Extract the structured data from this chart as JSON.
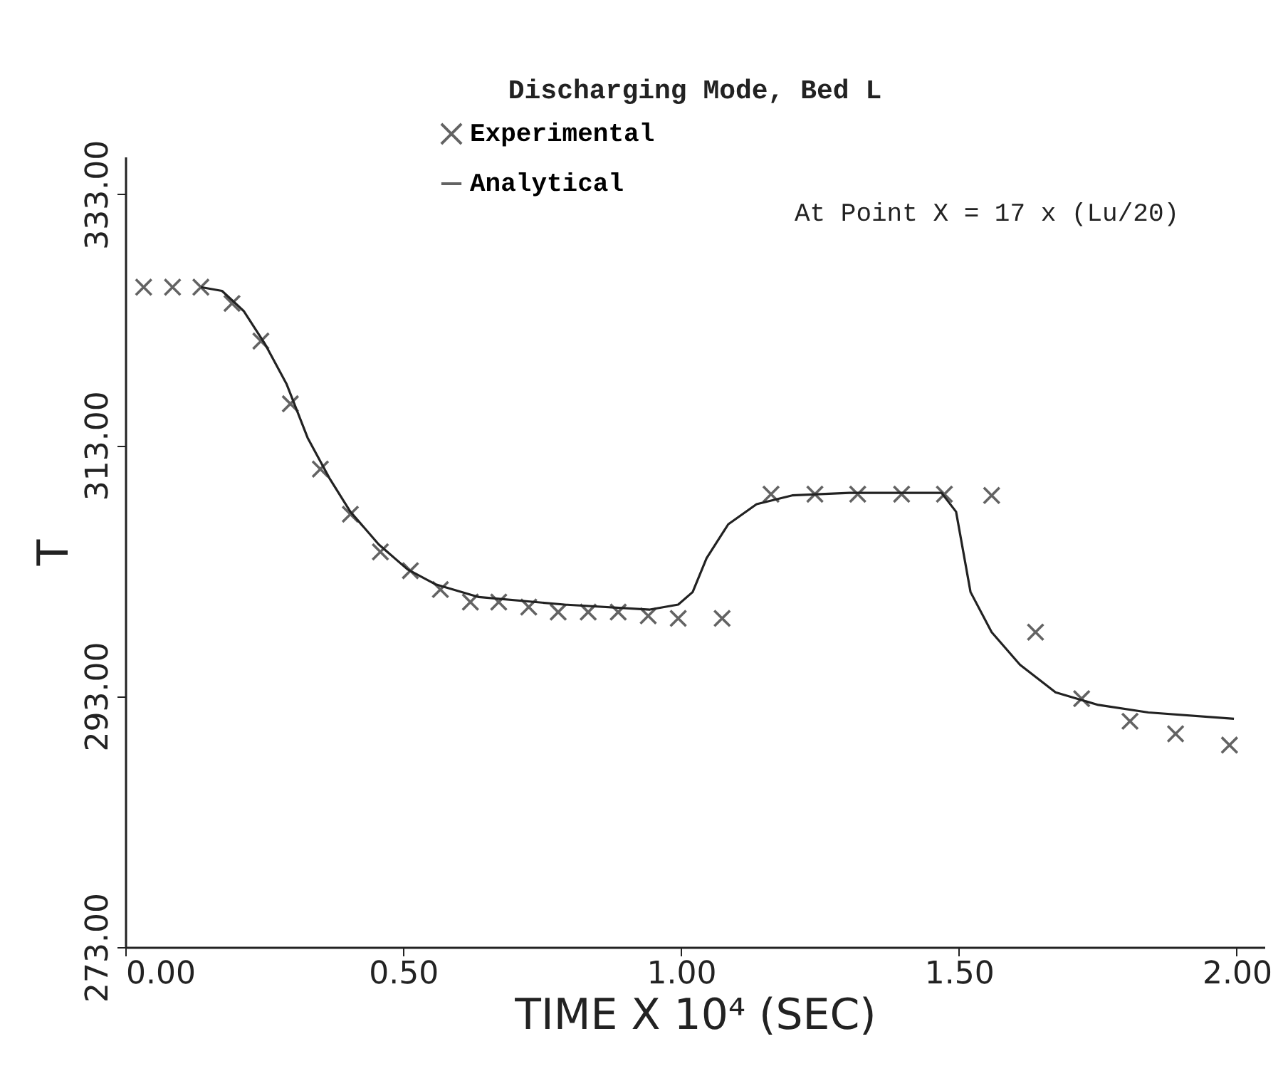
{
  "chart_data": {
    "type": "scatter",
    "title": "Discharging Mode, Bed L",
    "xlabel": "TIME X 10⁴ (SEC)",
    "ylabel": "T",
    "annotations": [
      "At Point X = 17 x (Lu/20)"
    ],
    "xlim": [
      0,
      2.05
    ],
    "ylim": [
      273,
      336
    ],
    "xticks": [
      {
        "value": 0,
        "label": "0.00"
      },
      {
        "value": 0.5,
        "label": "0.50"
      },
      {
        "value": 1,
        "label": "1.00"
      },
      {
        "value": 1.5,
        "label": "1.50"
      },
      {
        "value": 2,
        "label": "2.00"
      }
    ],
    "yticks": [
      {
        "value": 273,
        "label": "273.00"
      },
      {
        "value": 293,
        "label": "293.00"
      },
      {
        "value": 313,
        "label": "313.00"
      },
      {
        "value": 333,
        "label": "333.00"
      }
    ],
    "grid": false,
    "legend": "top",
    "series": [
      {
        "name": "Experimental",
        "marker": "cross",
        "color": "#222222",
        "x": [
          0.033,
          0.085,
          0.136,
          0.192,
          0.244,
          0.297,
          0.351,
          0.405,
          0.459,
          0.513,
          0.567,
          0.621,
          0.672,
          0.726,
          0.779,
          0.833,
          0.887,
          0.941,
          0.995,
          1.074,
          1.162,
          1.241,
          1.318,
          1.397,
          1.474,
          1.559,
          1.638,
          1.721,
          1.808,
          1.89,
          1.987
        ],
        "values": [
          325.6,
          325.6,
          325.6,
          324.3,
          321.3,
          316.3,
          311.1,
          307.5,
          304.5,
          303.0,
          301.5,
          300.5,
          300.5,
          300.1,
          299.7,
          299.7,
          299.7,
          299.4,
          299.2,
          299.2,
          309.1,
          309.1,
          309.1,
          309.1,
          309.1,
          309.0,
          298.1,
          292.8,
          291.0,
          290.0,
          289.1
        ]
      },
      {
        "name": "Analytical",
        "type": "line",
        "marker": "none",
        "color": "#222222",
        "x": [
          0.136,
          0.174,
          0.213,
          0.251,
          0.29,
          0.328,
          0.367,
          0.405,
          0.456,
          0.508,
          0.559,
          0.636,
          0.79,
          0.944,
          0.995,
          1.021,
          1.046,
          1.085,
          1.136,
          1.2,
          1.303,
          1.469,
          1.495,
          1.521,
          1.559,
          1.61,
          1.674,
          1.751,
          1.841,
          1.995
        ],
        "values": [
          325.6,
          325.3,
          323.7,
          321.1,
          317.9,
          313.6,
          310.4,
          307.7,
          305.1,
          303.1,
          301.9,
          300.9,
          300.3,
          299.9,
          300.3,
          301.3,
          304.0,
          306.7,
          308.3,
          309.0,
          309.2,
          309.2,
          307.7,
          301.3,
          298.1,
          295.5,
          293.3,
          292.3,
          291.7,
          291.2
        ]
      }
    ]
  }
}
